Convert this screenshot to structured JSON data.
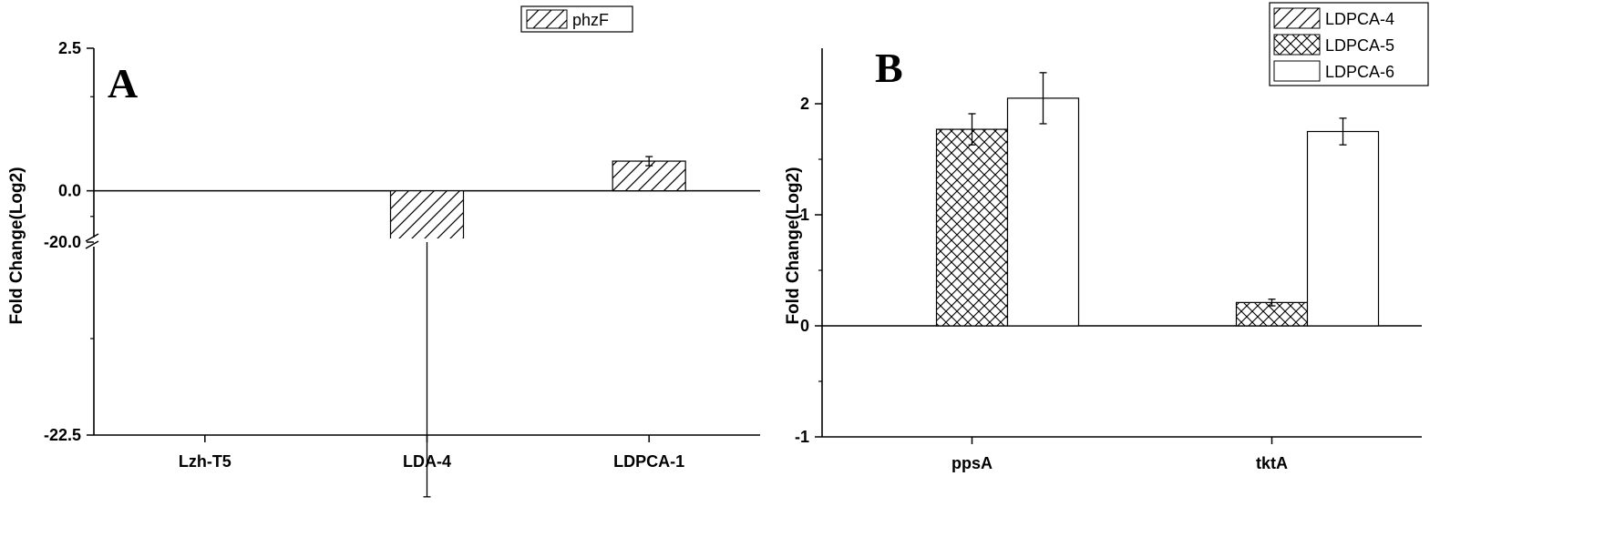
{
  "chart_data": [
    {
      "panel": "A",
      "type": "bar",
      "ylabel": "Fold Change(Log2)",
      "categories": [
        "Lzh-T5",
        "LDA-4",
        "LDPCA-1"
      ],
      "series": [
        {
          "name": "phzF",
          "pattern": "diagonal-hatch",
          "values": [
            0,
            -20.0,
            0.52
          ],
          "errors": [
            0,
            3.3,
            0.08
          ]
        }
      ],
      "y_axis_break": {
        "lower": [
          -22.5,
          -20.0
        ],
        "upper": [
          -0.9,
          2.5
        ]
      },
      "yticks": [
        2.5,
        0.0,
        -20.0,
        -22.5
      ],
      "ytick_labels": [
        "2.5",
        "0.0",
        "-20.0",
        "-22.5"
      ],
      "legend_position": "top-right",
      "grid": false
    },
    {
      "panel": "B",
      "type": "bar",
      "ylabel": "Fold Change(Log2)",
      "categories": [
        "ppsA",
        "tktA"
      ],
      "series": [
        {
          "name": "LDPCA-4",
          "pattern": "diagonal-hatch",
          "values": [
            0,
            0
          ],
          "errors": [
            0,
            0
          ]
        },
        {
          "name": "LDPCA-5",
          "pattern": "crosshatch",
          "values": [
            1.77,
            0.21
          ],
          "errors": [
            0.14,
            0.03
          ]
        },
        {
          "name": "LDPCA-6",
          "pattern": "none",
          "values": [
            2.05,
            1.75
          ],
          "errors": [
            0.23,
            0.12
          ]
        }
      ],
      "ylim": [
        -1,
        2.5
      ],
      "yticks": [
        -1,
        0,
        1,
        2
      ],
      "ytick_labels": [
        "-1",
        "0",
        "1",
        "2"
      ],
      "legend_position": "top-right",
      "grid": false
    }
  ]
}
